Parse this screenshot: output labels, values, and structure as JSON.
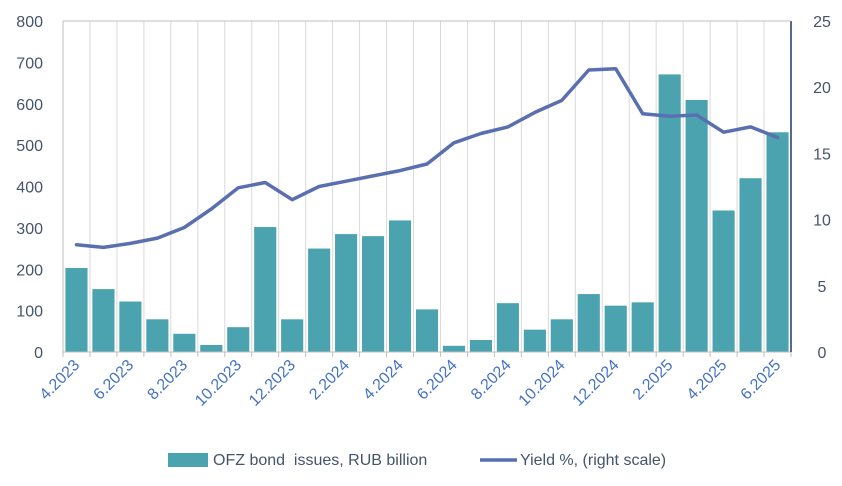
{
  "chart_data": {
    "type": "bar+line",
    "categories": [
      "4.2023",
      "5.2023",
      "6.2023",
      "7.2023",
      "8.2023",
      "9.2023",
      "10.2023",
      "11.2023",
      "12.2023",
      "1.2024",
      "2.2024",
      "3.2024",
      "4.2024",
      "5.2024",
      "6.2024",
      "7.2024",
      "8.2024",
      "9.2024",
      "10.2024",
      "11.2024",
      "12.2024",
      "1.2025",
      "2.2025",
      "3.2025",
      "4.2025",
      "5.2025",
      "6.2025"
    ],
    "x_tick_labels": [
      "4.2023",
      "6.2023",
      "8.2023",
      "10.2023",
      "12.2023",
      "2.2024",
      "4.2024",
      "6.2024",
      "8.2024",
      "10.2024",
      "12.2024",
      "2.2025",
      "4.2025",
      "6.2025"
    ],
    "series": [
      {
        "name": "OFZ bond  issues, RUB billion",
        "type": "bar",
        "axis": "left",
        "values": [
          203,
          152,
          122,
          79,
          44,
          17,
          60,
          302,
          79,
          250,
          285,
          280,
          318,
          103,
          15,
          29,
          118,
          54,
          79,
          140,
          112,
          120,
          671,
          609,
          342,
          420,
          531
        ]
      },
      {
        "name": "Yield %, (right scale)",
        "type": "line",
        "axis": "right",
        "values": [
          8.1,
          7.9,
          8.2,
          8.6,
          9.4,
          10.8,
          12.4,
          12.8,
          11.5,
          12.5,
          12.9,
          13.3,
          13.7,
          14.2,
          15.8,
          16.5,
          17.0,
          18.1,
          19.0,
          21.3,
          21.4,
          18.0,
          17.8,
          17.9,
          16.6,
          17.0,
          16.2
        ]
      }
    ],
    "y_left": {
      "ylim": [
        0,
        800
      ],
      "ticks": [
        "0",
        "100",
        "200",
        "300",
        "400",
        "500",
        "600",
        "700",
        "800"
      ]
    },
    "y_right": {
      "ylim": [
        0,
        25
      ],
      "ticks": [
        "0",
        "5",
        "10",
        "15",
        "20",
        "25"
      ]
    },
    "grid": "vertical",
    "legend": "bottom",
    "colors": {
      "bar": "#4aa3ae",
      "line": "#5a6fb0",
      "grid": "#d9d9d9",
      "axis_text": "#44546a",
      "x_tick_text": "#4472c4",
      "right_axis_line": "#1f3864"
    }
  }
}
